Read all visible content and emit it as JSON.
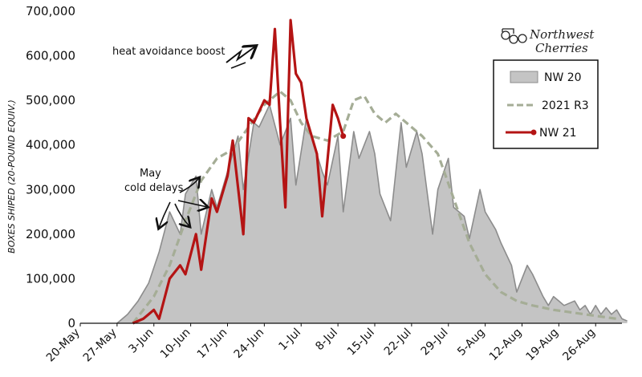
{
  "chart_data": {
    "type": "area",
    "ylabel": "BOXES SHIPED (20-POUND EQUIV.)",
    "ylim": [
      0,
      700000
    ],
    "yticks": [
      "0",
      "100,000",
      "200,000",
      "300,000",
      "400,000",
      "500,000",
      "600,000",
      "700,000"
    ],
    "yticks_values": [
      0,
      100000,
      200000,
      300000,
      400000,
      500000,
      600000,
      700000
    ],
    "xticks": [
      "20-May",
      "27-May",
      "3-Jun",
      "10-Jun",
      "17-Jun",
      "24-Jun",
      "1-Jul",
      "8-Jul",
      "15-Jul",
      "22-Jul",
      "29-Jul",
      "5-Aug",
      "12-Aug",
      "19-Aug",
      "26-Aug"
    ],
    "xlim": [
      "2021-05-20",
      "2021-08-31"
    ],
    "series": [
      {
        "name": "NW 20",
        "style": "area",
        "color": "#8c8c8c",
        "fill": "#c4c4c4",
        "points": [
          [
            "2021-05-27",
            0
          ],
          [
            "2021-05-29",
            20000
          ],
          [
            "2021-05-31",
            50000
          ],
          [
            "2021-06-02",
            90000
          ],
          [
            "2021-06-04",
            160000
          ],
          [
            "2021-06-06",
            250000
          ],
          [
            "2021-06-08",
            200000
          ],
          [
            "2021-06-09",
            290000
          ],
          [
            "2021-06-11",
            330000
          ],
          [
            "2021-06-12",
            200000
          ],
          [
            "2021-06-14",
            300000
          ],
          [
            "2021-06-15",
            260000
          ],
          [
            "2021-06-17",
            340000
          ],
          [
            "2021-06-19",
            420000
          ],
          [
            "2021-06-20",
            300000
          ],
          [
            "2021-06-22",
            450000
          ],
          [
            "2021-06-23",
            440000
          ],
          [
            "2021-06-25",
            490000
          ],
          [
            "2021-06-27",
            400000
          ],
          [
            "2021-06-29",
            460000
          ],
          [
            "2021-06-30",
            310000
          ],
          [
            "2021-07-02",
            460000
          ],
          [
            "2021-07-03",
            420000
          ],
          [
            "2021-07-05",
            340000
          ],
          [
            "2021-07-06",
            310000
          ],
          [
            "2021-07-08",
            420000
          ],
          [
            "2021-07-09",
            250000
          ],
          [
            "2021-07-11",
            430000
          ],
          [
            "2021-07-12",
            370000
          ],
          [
            "2021-07-14",
            430000
          ],
          [
            "2021-07-15",
            380000
          ],
          [
            "2021-07-16",
            290000
          ],
          [
            "2021-07-18",
            230000
          ],
          [
            "2021-07-20",
            450000
          ],
          [
            "2021-07-21",
            350000
          ],
          [
            "2021-07-23",
            430000
          ],
          [
            "2021-07-24",
            380000
          ],
          [
            "2021-07-26",
            200000
          ],
          [
            "2021-07-27",
            300000
          ],
          [
            "2021-07-29",
            370000
          ],
          [
            "2021-07-30",
            260000
          ],
          [
            "2021-08-01",
            240000
          ],
          [
            "2021-08-02",
            190000
          ],
          [
            "2021-08-04",
            300000
          ],
          [
            "2021-08-05",
            250000
          ],
          [
            "2021-08-07",
            210000
          ],
          [
            "2021-08-08",
            180000
          ],
          [
            "2021-08-10",
            130000
          ],
          [
            "2021-08-11",
            70000
          ],
          [
            "2021-08-13",
            130000
          ],
          [
            "2021-08-14",
            110000
          ],
          [
            "2021-08-16",
            60000
          ],
          [
            "2021-08-17",
            40000
          ],
          [
            "2021-08-18",
            60000
          ],
          [
            "2021-08-19",
            50000
          ],
          [
            "2021-08-20",
            40000
          ],
          [
            "2021-08-22",
            50000
          ],
          [
            "2021-08-23",
            30000
          ],
          [
            "2021-08-24",
            40000
          ],
          [
            "2021-08-25",
            20000
          ],
          [
            "2021-08-26",
            40000
          ],
          [
            "2021-08-27",
            20000
          ],
          [
            "2021-08-28",
            35000
          ],
          [
            "2021-08-29",
            20000
          ],
          [
            "2021-08-30",
            30000
          ],
          [
            "2021-08-31",
            10000
          ],
          [
            "2021-09-01",
            5000
          ]
        ]
      },
      {
        "name": "2021 R3",
        "style": "dashed",
        "color": "#a5ad96",
        "points": [
          [
            "2021-05-30",
            0
          ],
          [
            "2021-06-03",
            60000
          ],
          [
            "2021-06-06",
            130000
          ],
          [
            "2021-06-09",
            230000
          ],
          [
            "2021-06-12",
            320000
          ],
          [
            "2021-06-15",
            370000
          ],
          [
            "2021-06-18",
            390000
          ],
          [
            "2021-06-21",
            440000
          ],
          [
            "2021-06-24",
            490000
          ],
          [
            "2021-06-27",
            520000
          ],
          [
            "2021-06-29",
            500000
          ],
          [
            "2021-07-01",
            450000
          ],
          [
            "2021-07-03",
            420000
          ],
          [
            "2021-07-06",
            410000
          ],
          [
            "2021-07-09",
            430000
          ],
          [
            "2021-07-11",
            500000
          ],
          [
            "2021-07-13",
            510000
          ],
          [
            "2021-07-15",
            470000
          ],
          [
            "2021-07-17",
            450000
          ],
          [
            "2021-07-19",
            470000
          ],
          [
            "2021-07-21",
            450000
          ],
          [
            "2021-07-24",
            420000
          ],
          [
            "2021-07-27",
            380000
          ],
          [
            "2021-07-30",
            280000
          ],
          [
            "2021-08-02",
            180000
          ],
          [
            "2021-08-05",
            110000
          ],
          [
            "2021-08-08",
            70000
          ],
          [
            "2021-08-11",
            50000
          ],
          [
            "2021-08-14",
            40000
          ],
          [
            "2021-08-18",
            30000
          ],
          [
            "2021-08-21",
            25000
          ],
          [
            "2021-08-24",
            20000
          ],
          [
            "2021-08-27",
            15000
          ],
          [
            "2021-08-30",
            10000
          ]
        ]
      },
      {
        "name": "NW 21",
        "style": "line",
        "color": "#b41414",
        "points": [
          [
            "2021-05-30",
            0
          ],
          [
            "2021-06-01",
            10000
          ],
          [
            "2021-06-02",
            20000
          ],
          [
            "2021-06-03",
            30000
          ],
          [
            "2021-06-04",
            10000
          ],
          [
            "2021-06-06",
            100000
          ],
          [
            "2021-06-08",
            130000
          ],
          [
            "2021-06-09",
            110000
          ],
          [
            "2021-06-11",
            200000
          ],
          [
            "2021-06-12",
            120000
          ],
          [
            "2021-06-14",
            280000
          ],
          [
            "2021-06-15",
            250000
          ],
          [
            "2021-06-17",
            330000
          ],
          [
            "2021-06-18",
            410000
          ],
          [
            "2021-06-20",
            200000
          ],
          [
            "2021-06-21",
            460000
          ],
          [
            "2021-06-22",
            450000
          ],
          [
            "2021-06-24",
            500000
          ],
          [
            "2021-06-25",
            490000
          ],
          [
            "2021-06-26",
            660000
          ],
          [
            "2021-06-27",
            450000
          ],
          [
            "2021-06-28",
            260000
          ],
          [
            "2021-06-29",
            680000
          ],
          [
            "2021-06-30",
            560000
          ],
          [
            "2021-07-01",
            540000
          ],
          [
            "2021-07-02",
            460000
          ],
          [
            "2021-07-04",
            380000
          ],
          [
            "2021-07-05",
            240000
          ],
          [
            "2021-07-07",
            490000
          ],
          [
            "2021-07-08",
            460000
          ],
          [
            "2021-07-09",
            420000
          ]
        ]
      }
    ],
    "legend": {
      "position": "right",
      "entries": [
        "NW 20",
        "2021 R3",
        "NW 21"
      ]
    },
    "annotations": [
      {
        "text": "heat avoidance boost"
      },
      {
        "lines": [
          "May",
          "cold delays"
        ]
      }
    ],
    "logo": {
      "lines": [
        "Northwest",
        "Cherries"
      ]
    },
    "grid": false
  }
}
